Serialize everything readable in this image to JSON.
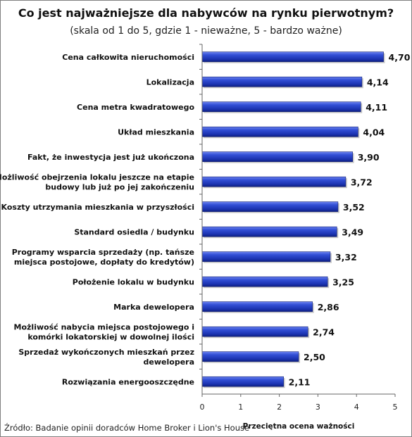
{
  "title": "Co jest najważniejsze dla nabywców na rynku pierwotnym?",
  "subtitle": "(skala od 1 do 5, gdzie 1 - nieważne, 5 - bardzo ważne)",
  "source": "Źródło: Badanie opinii doradców Home Broker i Lion's House",
  "chart_data": {
    "type": "bar",
    "orientation": "horizontal",
    "title": "Co jest najważniejsze dla nabywców na rynku pierwotnym?",
    "subtitle": "(skala od 1 do 5, gdzie 1 - nieważne, 5 - bardzo ważne)",
    "xlabel": "Przeciętna ocena ważności",
    "ylabel": "",
    "xlim": [
      0,
      5
    ],
    "ticks": [
      "0",
      "1",
      "2",
      "3",
      "4",
      "5"
    ],
    "grid": false,
    "legend": "none",
    "bar_color": "#1f3fbf",
    "categories": [
      [
        "Cena całkowita nieruchomości"
      ],
      [
        "Lokalizacja"
      ],
      [
        "Cena metra kwadratowego"
      ],
      [
        "Układ mieszkania"
      ],
      [
        "Fakt, że inwestycja jest już ukończona"
      ],
      [
        "Możliwość obejrzenia lokalu jeszcze na etapie",
        "budowy lub już po jej zakończeniu"
      ],
      [
        "Koszty utrzymania mieszkania w przyszłości"
      ],
      [
        "Standard osiedla / budynku"
      ],
      [
        "Programy wsparcia sprzedaży (np. tańsze",
        "miejsca postojowe, dopłaty do kredytów)"
      ],
      [
        "Położenie lokalu w budynku"
      ],
      [
        "Marka dewelopera"
      ],
      [
        "Możliwość nabycia miejsca postojowego i",
        "komórki lokatorskiej w dowolnej ilości"
      ],
      [
        "Sprzedaż wykończonych mieszkań przez",
        "dewelopera"
      ],
      [
        "Rozwiązania energooszczędne"
      ]
    ],
    "values": [
      4.7,
      4.14,
      4.11,
      4.04,
      3.9,
      3.72,
      3.52,
      3.49,
      3.32,
      3.25,
      2.86,
      2.74,
      2.5,
      2.11
    ],
    "data_labels": [
      "4,70",
      "4,14",
      "4,11",
      "4,04",
      "3,90",
      "3,72",
      "3,52",
      "3,49",
      "3,32",
      "3,25",
      "2,86",
      "2,74",
      "2,50",
      "2,11"
    ]
  }
}
